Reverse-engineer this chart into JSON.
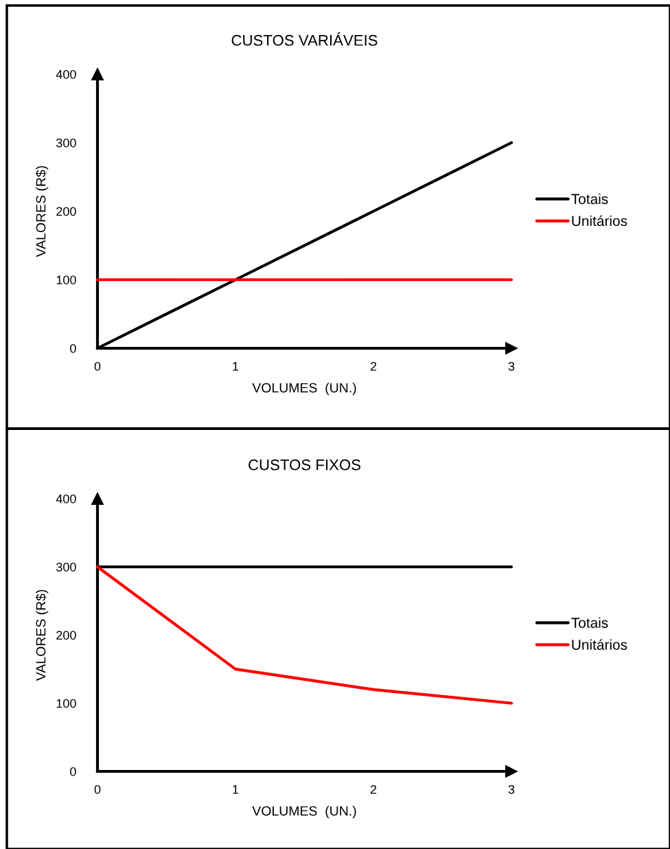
{
  "chart_data": [
    {
      "type": "line",
      "title": "CUSTOS VARIÁVEIS",
      "xlabel": "VOLUMES  (UN.)",
      "ylabel": "VALORES (R$)",
      "x": [
        0,
        1,
        2,
        3
      ],
      "xlim": [
        0,
        3
      ],
      "xticks": [
        0,
        1,
        2,
        3
      ],
      "ylim": [
        0,
        400
      ],
      "yticks": [
        0,
        100,
        200,
        300,
        400
      ],
      "grid": false,
      "legend": "right",
      "marker": "none",
      "line_style": "solid",
      "series": [
        {
          "name": "Totais",
          "color": "#000000",
          "values": [
            0,
            100,
            200,
            300
          ]
        },
        {
          "name": "Unitários",
          "color": "#ff0000",
          "values": [
            100,
            100,
            100,
            100
          ]
        }
      ]
    },
    {
      "type": "line",
      "title": "CUSTOS FIXOS",
      "xlabel": "VOLUMES  (UN.)",
      "ylabel": "VALORES (R$)",
      "x": [
        0,
        1,
        2,
        3
      ],
      "xlim": [
        0,
        3
      ],
      "xticks": [
        0,
        1,
        2,
        3
      ],
      "ylim": [
        0,
        400
      ],
      "yticks": [
        0,
        100,
        200,
        300,
        400
      ],
      "grid": false,
      "legend": "right",
      "marker": "none",
      "line_style": "solid",
      "series": [
        {
          "name": "Totais",
          "color": "#000000",
          "values": [
            300,
            300,
            300,
            300
          ]
        },
        {
          "name": "Unitários",
          "color": "#ff0000",
          "values": [
            300,
            150,
            120,
            100
          ]
        }
      ]
    }
  ]
}
